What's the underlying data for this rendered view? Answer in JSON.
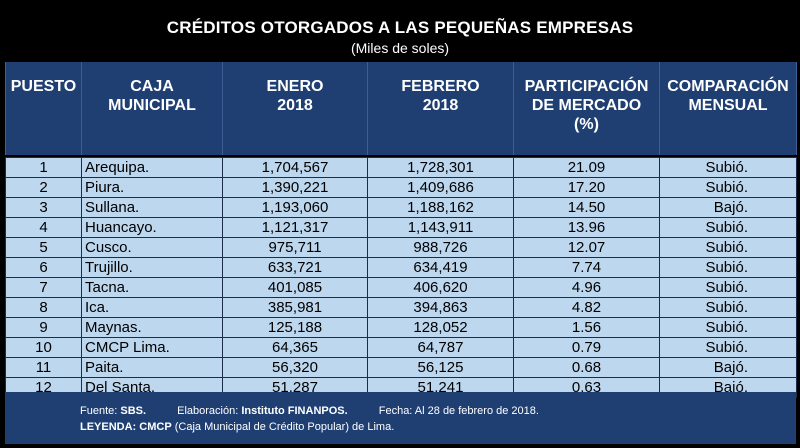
{
  "title": "CRÉDITOS OTORGADOS A LAS PEQUEÑAS EMPRESAS",
  "subtitle": "(Miles de soles)",
  "headers": {
    "puesto": "PUESTO",
    "caja_1": "CAJA",
    "caja_2": "MUNICIPAL",
    "enero_1": "ENERO",
    "enero_2": "2018",
    "febrero_1": "FEBRERO",
    "febrero_2": "2018",
    "part_1": "PARTICIPACIÓN",
    "part_2": "DE MERCADO",
    "part_3": "(%)",
    "comp_1": "COMPARACIÓN",
    "comp_2": "MENSUAL"
  },
  "rows": [
    {
      "puesto": "1",
      "caja": "Arequipa.",
      "enero": "1,704,567",
      "febrero": "1,728,301",
      "part": "21.09",
      "comp": "Subió."
    },
    {
      "puesto": "2",
      "caja": "Piura.",
      "enero": "1,390,221",
      "febrero": "1,409,686",
      "part": "17.20",
      "comp": "Subió."
    },
    {
      "puesto": "3",
      "caja": "Sullana.",
      "enero": "1,193,060",
      "febrero": "1,188,162",
      "part": "14.50",
      "comp": "Bajó."
    },
    {
      "puesto": "4",
      "caja": "Huancayo.",
      "enero": "1,121,317",
      "febrero": "1,143,911",
      "part": "13.96",
      "comp": "Subió."
    },
    {
      "puesto": "5",
      "caja": "Cusco.",
      "enero": "975,711",
      "febrero": "988,726",
      "part": "12.07",
      "comp": "Subió."
    },
    {
      "puesto": "6",
      "caja": "Trujillo.",
      "enero": "633,721",
      "febrero": "634,419",
      "part": "7.74",
      "comp": "Subió."
    },
    {
      "puesto": "7",
      "caja": "Tacna.",
      "enero": "401,085",
      "febrero": "406,620",
      "part": "4.96",
      "comp": "Subió."
    },
    {
      "puesto": "8",
      "caja": "Ica.",
      "enero": "385,981",
      "febrero": "394,863",
      "part": "4.82",
      "comp": "Subió."
    },
    {
      "puesto": "9",
      "caja": "Maynas.",
      "enero": "125,188",
      "febrero": "128,052",
      "part": "1.56",
      "comp": "Subió."
    },
    {
      "puesto": "10",
      "caja": "CMCP Lima.",
      "enero": "64,365",
      "febrero": "64,787",
      "part": "0.79",
      "comp": "Subió."
    },
    {
      "puesto": "11",
      "caja": "Paita.",
      "enero": "56,320",
      "febrero": "56,125",
      "part": "0.68",
      "comp": "Bajó."
    },
    {
      "puesto": "12",
      "caja": "Del Santa.",
      "enero": "51,287",
      "febrero": "51,241",
      "part": "0.63",
      "comp": "Bajó."
    }
  ],
  "footer": {
    "fuente_label": "Fuente:",
    "fuente_value": "SBS.",
    "elab_label": "Elaboración:",
    "elab_value": "Instituto FINANPOS.",
    "fecha": "Fecha: Al 28 de febrero de 2018.",
    "leyenda_label": "LEYENDA:",
    "leyenda_abbr": "CMCP",
    "leyenda_text": "(Caja Municipal de Crédito Popular) de Lima."
  }
}
